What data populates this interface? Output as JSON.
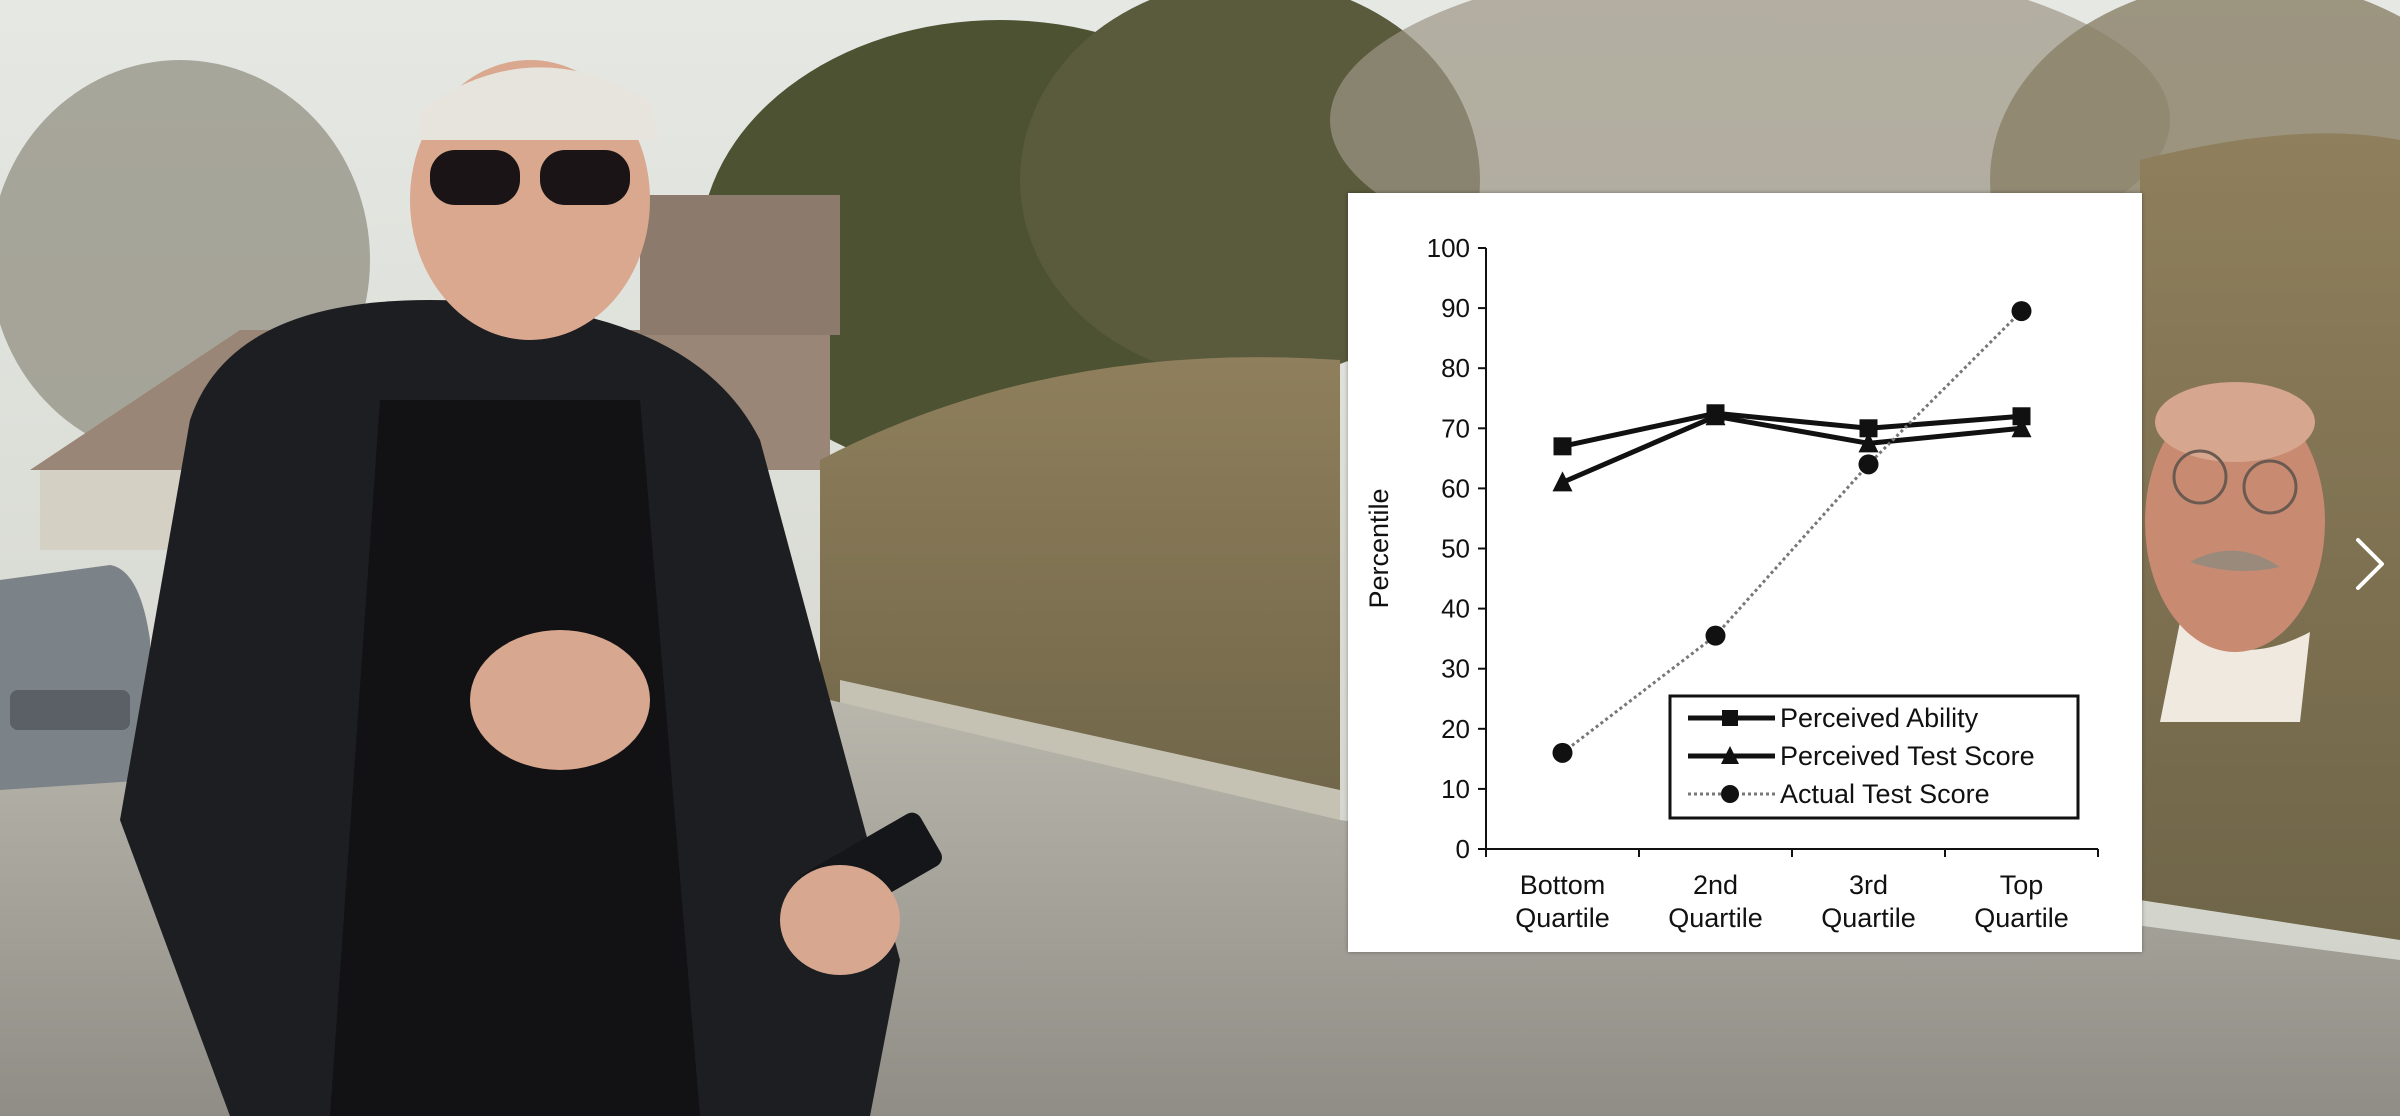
{
  "video": {
    "scene_description_icon": "street-scene",
    "next_icon": "chevron-right-icon"
  },
  "chart_data": {
    "type": "line",
    "categories": [
      [
        "Bottom",
        "Quartile"
      ],
      [
        "2nd",
        "Quartile"
      ],
      [
        "3rd",
        "Quartile"
      ],
      [
        "Top",
        "Quartile"
      ]
    ],
    "ylabel": "Percentile",
    "ylim": [
      0,
      100
    ],
    "yticks": [
      0,
      10,
      20,
      30,
      40,
      50,
      60,
      70,
      80,
      90,
      100
    ],
    "grid": false,
    "legend_position": "bottom-right",
    "series": [
      {
        "name": "Perceived Ability",
        "marker": "square",
        "style": "solid",
        "values": [
          67,
          72.5,
          70,
          72
        ]
      },
      {
        "name": "Perceived Test Score",
        "marker": "triangle",
        "style": "solid",
        "values": [
          61,
          72,
          67.5,
          70
        ]
      },
      {
        "name": "Actual Test Score",
        "marker": "circle",
        "style": "dotted",
        "values": [
          16,
          35.5,
          64,
          89.5
        ]
      }
    ]
  }
}
